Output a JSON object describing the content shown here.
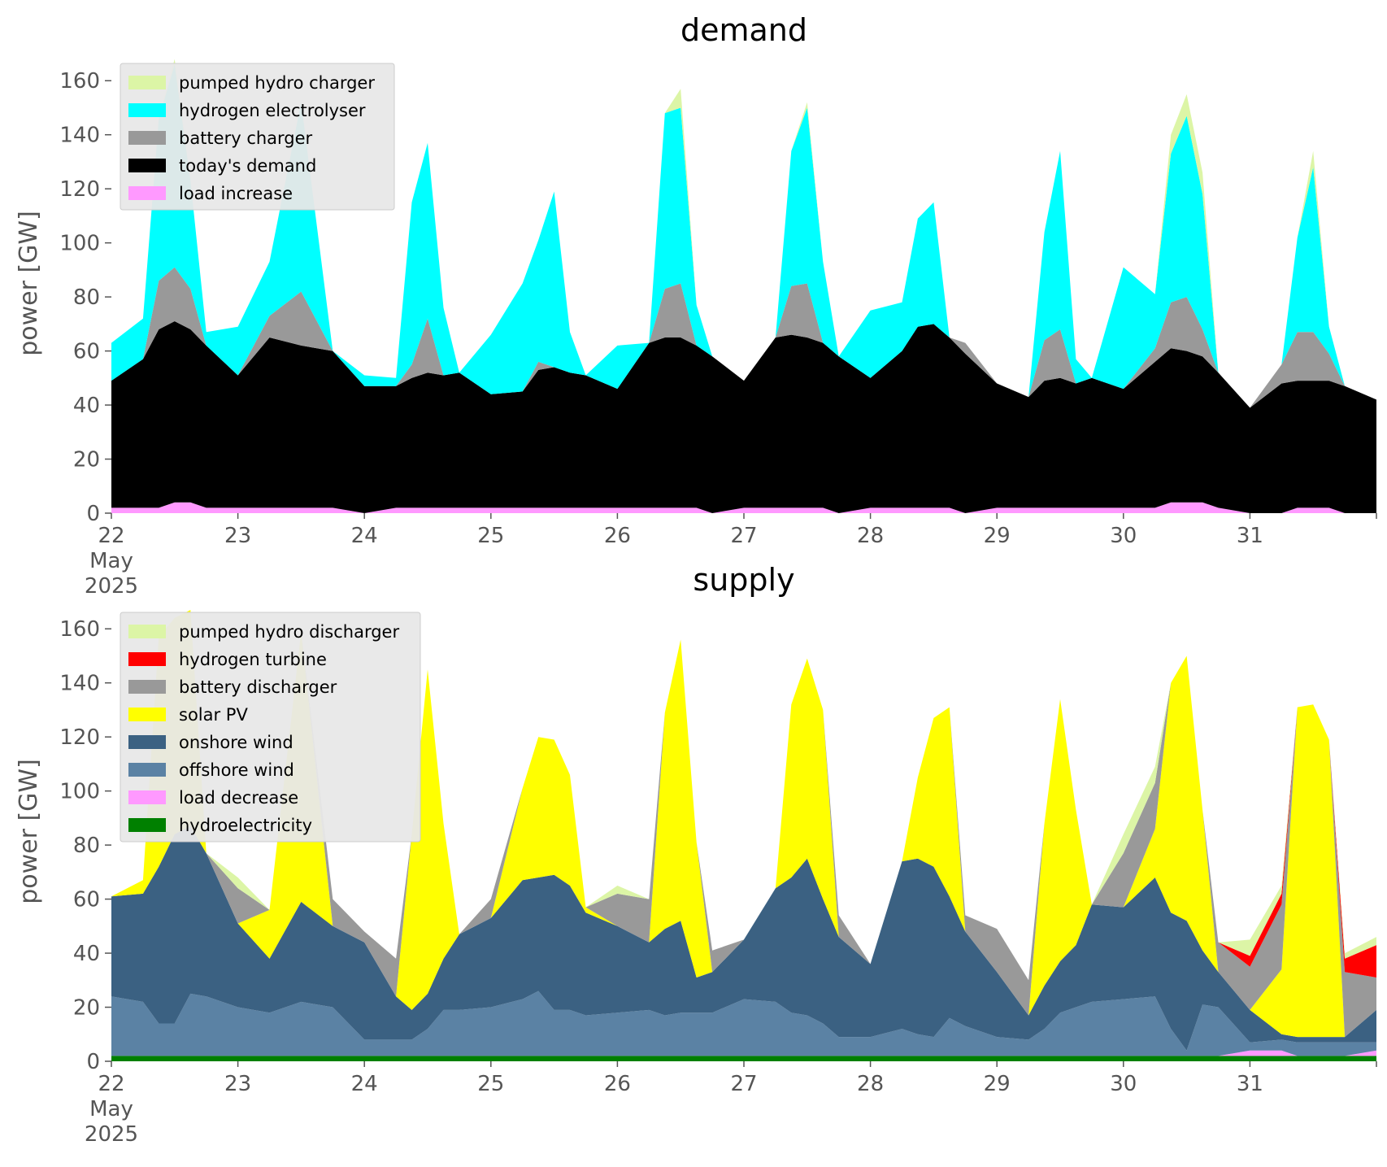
{
  "chart_data": [
    {
      "type": "area",
      "title": "demand",
      "ylabel": "power [GW]",
      "ylim": [
        0,
        170
      ],
      "yticks": [
        0,
        20,
        40,
        60,
        80,
        100,
        120,
        140,
        160
      ],
      "xlim": [
        22,
        32
      ],
      "xticks": [
        {
          "x": 22,
          "lines": [
            "22",
            "May",
            "2025"
          ]
        },
        {
          "x": 23,
          "lines": [
            "23"
          ]
        },
        {
          "x": 24,
          "lines": [
            "24"
          ]
        },
        {
          "x": 25,
          "lines": [
            "25"
          ]
        },
        {
          "x": 26,
          "lines": [
            "26"
          ]
        },
        {
          "x": 27,
          "lines": [
            "27"
          ]
        },
        {
          "x": 28,
          "lines": [
            "28"
          ]
        },
        {
          "x": 29,
          "lines": [
            "29"
          ]
        },
        {
          "x": 30,
          "lines": [
            "30"
          ]
        },
        {
          "x": 31,
          "lines": [
            "31"
          ]
        },
        {
          "x": 32,
          "lines": [
            ""
          ]
        }
      ],
      "grid": false,
      "legend_position": "top-left",
      "legend": [
        {
          "name": "pumped hydro charger",
          "color": "#dcf5a6"
        },
        {
          "name": "hydrogen electrolyser",
          "color": "#00ffff"
        },
        {
          "name": "battery charger",
          "color": "#999999"
        },
        {
          "name": "today's demand",
          "color": "#000000"
        },
        {
          "name": "load increase",
          "color": "#ff99ff"
        }
      ],
      "x": [
        22,
        22.25,
        22.375,
        22.5,
        22.625,
        22.75,
        23,
        23.25,
        23.5,
        23.75,
        24,
        24.25,
        24.375,
        24.5,
        24.625,
        24.75,
        25,
        25.25,
        25.375,
        25.5,
        25.625,
        25.75,
        26,
        26.25,
        26.375,
        26.5,
        26.625,
        26.75,
        27,
        27.25,
        27.375,
        27.5,
        27.625,
        27.75,
        28,
        28.25,
        28.375,
        28.5,
        28.625,
        28.75,
        29,
        29.25,
        29.375,
        29.5,
        29.625,
        29.75,
        30,
        30.25,
        30.375,
        30.5,
        30.625,
        30.75,
        31,
        31.25,
        31.375,
        31.5,
        31.625,
        31.75,
        32
      ],
      "series": [
        {
          "name": "load increase",
          "color": "#ff99ff",
          "values": [
            2,
            2,
            2,
            4,
            4,
            2,
            2,
            2,
            2,
            2,
            0,
            2,
            2,
            2,
            2,
            2,
            2,
            2,
            2,
            2,
            2,
            2,
            2,
            2,
            2,
            2,
            2,
            0,
            2,
            2,
            2,
            2,
            2,
            0,
            2,
            2,
            2,
            2,
            2,
            0,
            2,
            2,
            2,
            2,
            2,
            2,
            2,
            2,
            4,
            4,
            4,
            2,
            0,
            0,
            2,
            2,
            2,
            0,
            0
          ]
        },
        {
          "name": "today's demand",
          "color": "#000000",
          "values": [
            47,
            55,
            66,
            67,
            64,
            60,
            49,
            63,
            60,
            58,
            47,
            45,
            48,
            50,
            49,
            50,
            42,
            43,
            51,
            52,
            50,
            49,
            44,
            61,
            63,
            63,
            60,
            58,
            47,
            63,
            64,
            63,
            61,
            58,
            48,
            58,
            67,
            68,
            63,
            59,
            46,
            41,
            47,
            48,
            46,
            48,
            44,
            54,
            57,
            56,
            54,
            50,
            39,
            48,
            47,
            47,
            47,
            47,
            42
          ]
        },
        {
          "name": "battery charger",
          "color": "#999999",
          "values": [
            0,
            0,
            18,
            20,
            15,
            0,
            0,
            8,
            20,
            0,
            0,
            0,
            5,
            20,
            0,
            0,
            0,
            0,
            3,
            0,
            0,
            0,
            0,
            0,
            18,
            20,
            0,
            0,
            0,
            0,
            18,
            20,
            0,
            0,
            0,
            0,
            0,
            0,
            0,
            4,
            0,
            0,
            15,
            18,
            0,
            0,
            0,
            5,
            17,
            20,
            10,
            0,
            0,
            7,
            18,
            18,
            10,
            0,
            0
          ]
        },
        {
          "name": "hydrogen electrolyser",
          "color": "#00ffff",
          "values": [
            14,
            15,
            60,
            75,
            40,
            5,
            18,
            20,
            70,
            0,
            4,
            3,
            60,
            65,
            25,
            0,
            22,
            40,
            45,
            65,
            15,
            0,
            16,
            0,
            65,
            65,
            15,
            0,
            0,
            0,
            50,
            65,
            30,
            0,
            25,
            18,
            40,
            45,
            0,
            0,
            0,
            0,
            40,
            66,
            9,
            0,
            45,
            20,
            55,
            67,
            50,
            0,
            0,
            0,
            35,
            61,
            10,
            0,
            0
          ]
        },
        {
          "name": "pumped hydro charger",
          "color": "#dcf5a6",
          "values": [
            0,
            0,
            0,
            2,
            0,
            0,
            0,
            0,
            0,
            0,
            0,
            0,
            0,
            0,
            0,
            0,
            0,
            0,
            0,
            0,
            0,
            0,
            0,
            0,
            0,
            7,
            0,
            0,
            0,
            0,
            0,
            2,
            0,
            0,
            0,
            0,
            0,
            0,
            0,
            0,
            0,
            0,
            0,
            0,
            0,
            0,
            0,
            0,
            7,
            8,
            8,
            0,
            0,
            0,
            0,
            6,
            0,
            0,
            0
          ]
        }
      ]
    },
    {
      "type": "area",
      "title": "supply",
      "ylabel": "power [GW]",
      "ylim": [
        0,
        170
      ],
      "yticks": [
        0,
        20,
        40,
        60,
        80,
        100,
        120,
        140,
        160
      ],
      "xlim": [
        22,
        32
      ],
      "xticks": [
        {
          "x": 22,
          "lines": [
            "22",
            "May",
            "2025"
          ]
        },
        {
          "x": 23,
          "lines": [
            "23"
          ]
        },
        {
          "x": 24,
          "lines": [
            "24"
          ]
        },
        {
          "x": 25,
          "lines": [
            "25"
          ]
        },
        {
          "x": 26,
          "lines": [
            "26"
          ]
        },
        {
          "x": 27,
          "lines": [
            "27"
          ]
        },
        {
          "x": 28,
          "lines": [
            "28"
          ]
        },
        {
          "x": 29,
          "lines": [
            "29"
          ]
        },
        {
          "x": 30,
          "lines": [
            "30"
          ]
        },
        {
          "x": 31,
          "lines": [
            "31"
          ]
        },
        {
          "x": 32,
          "lines": [
            ""
          ]
        }
      ],
      "grid": false,
      "legend_position": "top-left",
      "legend": [
        {
          "name": "pumped hydro discharger",
          "color": "#dcf5a6"
        },
        {
          "name": "hydrogen turbine",
          "color": "#ff0000"
        },
        {
          "name": "battery discharger",
          "color": "#999999"
        },
        {
          "name": "solar PV",
          "color": "#ffff00"
        },
        {
          "name": "onshore wind",
          "color": "#3b6182"
        },
        {
          "name": "offshore wind",
          "color": "#5b82a4"
        },
        {
          "name": "load decrease",
          "color": "#ff99ff"
        },
        {
          "name": "hydroelectricity",
          "color": "#008000"
        }
      ],
      "x": [
        22,
        22.25,
        22.375,
        22.5,
        22.625,
        22.75,
        23,
        23.25,
        23.5,
        23.75,
        24,
        24.25,
        24.375,
        24.5,
        24.625,
        24.75,
        25,
        25.25,
        25.375,
        25.5,
        25.625,
        25.75,
        26,
        26.25,
        26.375,
        26.5,
        26.625,
        26.75,
        27,
        27.25,
        27.375,
        27.5,
        27.625,
        27.75,
        28,
        28.25,
        28.375,
        28.5,
        28.625,
        28.75,
        29,
        29.25,
        29.375,
        29.5,
        29.625,
        29.75,
        30,
        30.25,
        30.375,
        30.5,
        30.625,
        30.75,
        31,
        31.25,
        31.375,
        31.5,
        31.625,
        31.75,
        32
      ],
      "series": [
        {
          "name": "hydroelectricity",
          "color": "#008000",
          "values": [
            2,
            2,
            2,
            2,
            2,
            2,
            2,
            2,
            2,
            2,
            2,
            2,
            2,
            2,
            2,
            2,
            2,
            2,
            2,
            2,
            2,
            2,
            2,
            2,
            2,
            2,
            2,
            2,
            2,
            2,
            2,
            2,
            2,
            2,
            2,
            2,
            2,
            2,
            2,
            2,
            2,
            2,
            2,
            2,
            2,
            2,
            2,
            2,
            2,
            2,
            2,
            2,
            2,
            2,
            2,
            2,
            2,
            2,
            2
          ]
        },
        {
          "name": "load decrease",
          "color": "#ff99ff",
          "values": [
            0,
            0,
            0,
            0,
            0,
            0,
            0,
            0,
            0,
            0,
            0,
            0,
            0,
            0,
            0,
            0,
            0,
            0,
            0,
            0,
            0,
            0,
            0,
            0,
            0,
            0,
            0,
            0,
            0,
            0,
            0,
            0,
            0,
            0,
            0,
            0,
            0,
            0,
            0,
            0,
            0,
            0,
            0,
            0,
            0,
            0,
            0,
            0,
            0,
            0,
            0,
            0,
            2,
            2,
            0,
            0,
            0,
            0,
            2
          ]
        },
        {
          "name": "offshore wind",
          "color": "#5b82a4",
          "values": [
            22,
            20,
            12,
            12,
            23,
            22,
            18,
            16,
            20,
            18,
            6,
            6,
            6,
            10,
            17,
            17,
            18,
            21,
            24,
            17,
            17,
            15,
            16,
            17,
            15,
            16,
            16,
            16,
            21,
            20,
            16,
            15,
            12,
            7,
            7,
            10,
            8,
            7,
            14,
            11,
            7,
            6,
            10,
            16,
            18,
            20,
            21,
            22,
            10,
            2,
            19,
            18,
            3,
            4,
            5,
            5,
            5,
            5,
            3
          ]
        },
        {
          "name": "onshore wind",
          "color": "#3b6182",
          "values": [
            37,
            40,
            58,
            70,
            62,
            53,
            31,
            20,
            37,
            30,
            36,
            16,
            11,
            13,
            19,
            28,
            33,
            44,
            42,
            50,
            46,
            38,
            32,
            25,
            32,
            34,
            13,
            15,
            22,
            42,
            50,
            58,
            46,
            37,
            27,
            62,
            65,
            63,
            45,
            35,
            24,
            9,
            16,
            19,
            23,
            36,
            34,
            44,
            43,
            48,
            20,
            13,
            12,
            2,
            2,
            2,
            2,
            2,
            12
          ]
        },
        {
          "name": "solar PV",
          "color": "#ffff00",
          "values": [
            0,
            5,
            85,
            80,
            80,
            0,
            0,
            18,
            100,
            0,
            0,
            0,
            65,
            120,
            50,
            0,
            0,
            34,
            52,
            50,
            41,
            2,
            0,
            0,
            80,
            104,
            50,
            0,
            0,
            0,
            64,
            74,
            70,
            0,
            0,
            0,
            30,
            55,
            70,
            0,
            0,
            0,
            60,
            97,
            50,
            0,
            0,
            18,
            85,
            98,
            52,
            0,
            0,
            24,
            122,
            123,
            110,
            0,
            0
          ]
        },
        {
          "name": "battery discharger",
          "color": "#999999",
          "values": [
            0,
            0,
            0,
            0,
            0,
            0,
            13,
            0,
            0,
            10,
            4,
            14,
            0,
            0,
            0,
            0,
            7,
            0,
            0,
            0,
            0,
            0,
            12,
            16,
            0,
            0,
            0,
            8,
            0,
            0,
            0,
            0,
            0,
            8,
            0,
            0,
            0,
            0,
            0,
            6,
            16,
            13,
            0,
            0,
            0,
            0,
            20,
            17,
            0,
            0,
            0,
            11,
            16,
            24,
            0,
            0,
            0,
            24,
            12
          ]
        },
        {
          "name": "hydrogen turbine",
          "color": "#ff0000",
          "values": [
            0,
            0,
            0,
            0,
            0,
            0,
            0,
            0,
            0,
            0,
            0,
            0,
            0,
            0,
            0,
            0,
            0,
            0,
            0,
            0,
            0,
            0,
            0,
            0,
            0,
            0,
            0,
            0,
            0,
            0,
            0,
            0,
            0,
            0,
            0,
            0,
            0,
            0,
            0,
            0,
            0,
            0,
            0,
            0,
            0,
            0,
            0,
            0,
            0,
            0,
            0,
            0,
            4,
            4,
            0,
            0,
            0,
            5,
            12
          ]
        },
        {
          "name": "pumped hydro discharger",
          "color": "#dcf5a6",
          "values": [
            0,
            0,
            0,
            0,
            0,
            0,
            4,
            0,
            0,
            0,
            0,
            0,
            0,
            0,
            0,
            0,
            0,
            0,
            0,
            0,
            0,
            0,
            3,
            0,
            0,
            0,
            0,
            0,
            0,
            0,
            0,
            0,
            0,
            0,
            0,
            0,
            0,
            0,
            0,
            0,
            0,
            0,
            0,
            0,
            0,
            0,
            7,
            6,
            0,
            0,
            0,
            0,
            6,
            3,
            0,
            0,
            0,
            2,
            3
          ]
        }
      ]
    }
  ]
}
